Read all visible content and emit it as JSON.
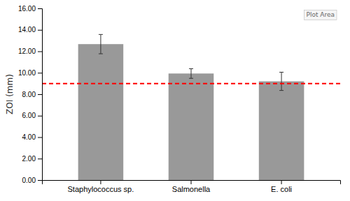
{
  "chart_data": {
    "type": "bar",
    "categories": [
      "Staphylococcus sp.",
      "Salmonella",
      "E. coli"
    ],
    "values": [
      12.67,
      9.93,
      9.2
    ],
    "errors": [
      0.9,
      0.45,
      0.85
    ],
    "color": "#999999",
    "ylabel": "ZOI (mm)",
    "ylim": [
      0.0,
      16.0
    ],
    "yticks": [
      {
        "value": 0.0,
        "label": "0.00"
      },
      {
        "value": 2.0,
        "label": "2.00"
      },
      {
        "value": 4.0,
        "label": "4.00"
      },
      {
        "value": 6.0,
        "label": "6.00"
      },
      {
        "value": 8.0,
        "label": "8.00"
      },
      {
        "value": 10.0,
        "label": "10.00"
      },
      {
        "value": 12.0,
        "label": "12.00"
      },
      {
        "value": 14.0,
        "label": "14.00"
      },
      {
        "value": 16.0,
        "label": "16.00"
      }
    ],
    "reference_line": {
      "y": 9.0,
      "color": "#ff0000",
      "line_style": "dashed"
    },
    "annotation": "Plot Area",
    "grid": false
  }
}
